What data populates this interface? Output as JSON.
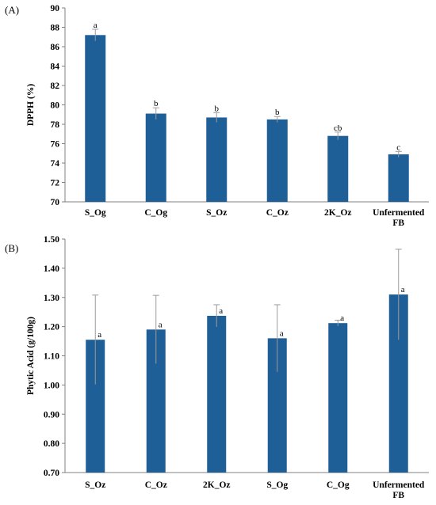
{
  "colors": {
    "bar": "#1f5f97",
    "error_bar": "#9a9a9a",
    "axis": "#808080"
  },
  "chart_data": [
    {
      "panel_label": "(A)",
      "type": "bar",
      "ylabel": "DPPH (%)",
      "ylim": [
        70,
        90
      ],
      "yticks": [
        "70",
        "72",
        "74",
        "76",
        "78",
        "80",
        "82",
        "84",
        "86",
        "88",
        "90"
      ],
      "categories": [
        [
          "S_Og"
        ],
        [
          "C_Og"
        ],
        [
          "S_Oz"
        ],
        [
          "C_Oz"
        ],
        [
          "2K_Oz"
        ],
        [
          "Unfermented",
          "FB"
        ]
      ],
      "values": [
        87.2,
        79.1,
        78.7,
        78.5,
        76.8,
        74.9
      ],
      "errors": [
        0.6,
        0.6,
        0.5,
        0.3,
        0.4,
        0.3
      ],
      "significance": [
        "a",
        "b",
        "b",
        "b",
        "cb",
        "c"
      ],
      "grid": false
    },
    {
      "panel_label": "(B)",
      "type": "bar",
      "ylabel": "Phytic Acid (g/100g)",
      "ylim": [
        0.7,
        1.5
      ],
      "yticks": [
        "0.70",
        "0.80",
        "0.90",
        "1.00",
        "1.10",
        "1.20",
        "1.30",
        "1.40",
        "1.50"
      ],
      "categories": [
        [
          "S_Oz"
        ],
        [
          "C_Oz"
        ],
        [
          "2K_Oz"
        ],
        [
          "S_Og"
        ],
        [
          "C_Og"
        ],
        [
          "Unfermented",
          "FB"
        ]
      ],
      "values": [
        1.155,
        1.19,
        1.237,
        1.16,
        1.212,
        1.31
      ],
      "errors": [
        0.153,
        0.117,
        0.038,
        0.115,
        0.01,
        0.155
      ],
      "significance": [
        "a",
        "a",
        "a",
        "a",
        "a",
        "a"
      ],
      "grid": false
    }
  ]
}
